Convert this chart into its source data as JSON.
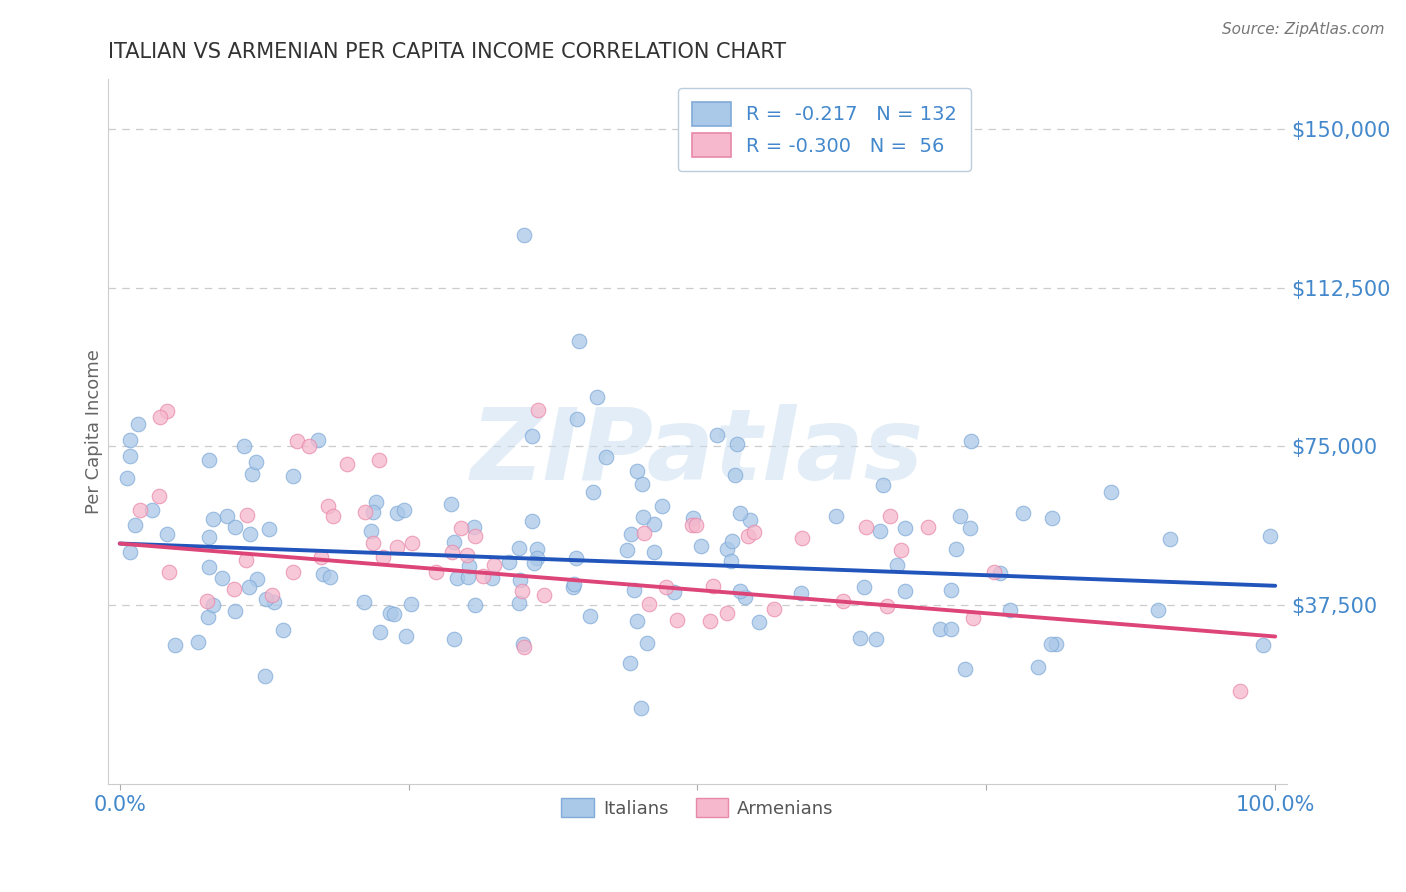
{
  "title": "ITALIAN VS ARMENIAN PER CAPITA INCOME CORRELATION CHART",
  "source": "Source: ZipAtlas.com",
  "ylabel": "Per Capita Income",
  "xlim": [
    -0.01,
    1.01
  ],
  "ylim": [
    -5000,
    162000
  ],
  "yticks": [
    37500,
    75000,
    112500,
    150000
  ],
  "ytick_labels": [
    "$37,500",
    "$75,000",
    "$112,500",
    "$150,000"
  ],
  "xticks": [
    0,
    0.25,
    0.5,
    0.75,
    1.0
  ],
  "xtick_labels": [
    "0.0%",
    "",
    "",
    "",
    "100.0%"
  ],
  "italian_color": "#aac8e8",
  "armenian_color": "#f5b8cc",
  "italian_edge": "#80aad8",
  "armenian_edge": "#e888aa",
  "trend_italian_color": "#2255bb",
  "trend_armenian_color": "#dd4477",
  "background_color": "#ffffff",
  "grid_color": "#cccccc",
  "title_color": "#333333",
  "axis_color": "#4488cc",
  "watermark_color": "#c8ddf0",
  "watermark_alpha": 0.5,
  "seed": 7
}
